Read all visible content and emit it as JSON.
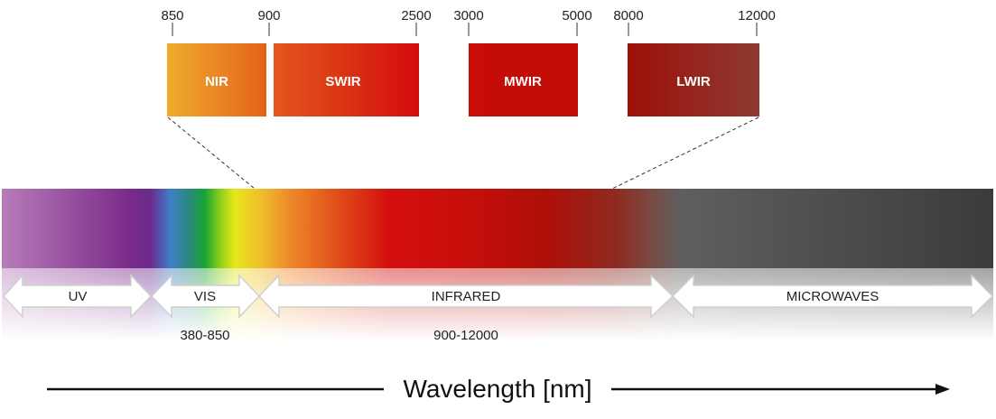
{
  "bands": [
    {
      "name": "NIR",
      "min": 850,
      "max": 900,
      "color_start": "#efac2c",
      "color_end": "#e4621a"
    },
    {
      "name": "SWIR",
      "min": 900,
      "max": 2500,
      "color_start": "#e2581c",
      "color_end": "#d40c0c"
    },
    {
      "name": "MWIR",
      "min": 3000,
      "max": 5000,
      "color_start": "#c80c08",
      "color_end": "#c20c08"
    },
    {
      "name": "LWIR",
      "min": 8000,
      "max": 12000,
      "color_start": "#9e1008",
      "color_end": "#8c3a32"
    }
  ],
  "ticks": [
    "850",
    "900",
    "2500",
    "3000",
    "5000",
    "8000",
    "12000"
  ],
  "regions": [
    {
      "name": "UV"
    },
    {
      "name": "VIS",
      "range": "380-850"
    },
    {
      "name": "INFRARED",
      "range": "900-12000"
    },
    {
      "name": "MICROWAVES"
    }
  ],
  "axis": {
    "title": "Wavelength [nm]"
  },
  "colors": {
    "uv": "#7a2a8a",
    "blue": "#3d7fc8",
    "green": "#17a534",
    "yellow": "#e6e61a",
    "orange": "#ef9a2c",
    "red": "#d40f0f",
    "dark_red": "#8e1208",
    "gray": "#5f5f5f",
    "dark_gray": "#3b3b3b",
    "arrow_stroke": "#cfcfcf"
  }
}
